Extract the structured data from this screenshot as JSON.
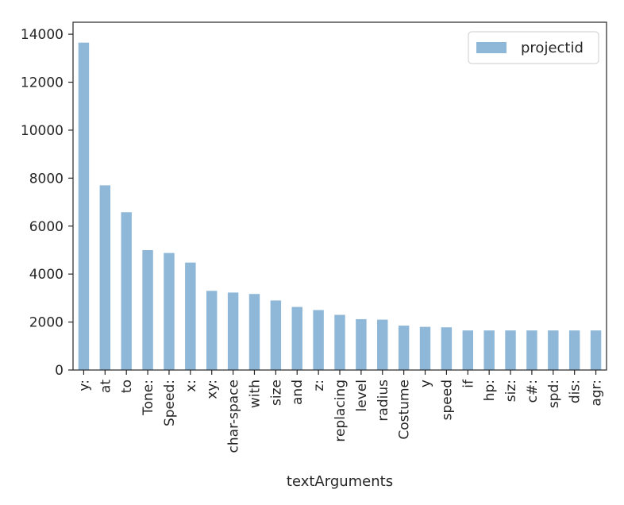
{
  "chart_data": {
    "type": "bar",
    "categories": [
      "y:",
      "at",
      "to",
      "Tone:",
      "Speed:",
      "x:",
      "xy:",
      "char-space",
      "with",
      "size",
      "and",
      "z:",
      "replacing",
      "level",
      "radius",
      "Costume",
      "y",
      "speed",
      "if",
      "hp:",
      "siz:",
      "c#:",
      "spd:",
      "dis:",
      "agr:"
    ],
    "series": [
      {
        "name": "projectid",
        "color": "#8fb8d8",
        "values": [
          13650,
          7700,
          6580,
          5000,
          4880,
          4480,
          3300,
          3230,
          3170,
          2900,
          2630,
          2500,
          2300,
          2120,
          2100,
          1850,
          1800,
          1780,
          1650,
          1650,
          1650,
          1650,
          1650,
          1650,
          1650
        ]
      }
    ],
    "title": "",
    "xlabel": "textArguments",
    "ylabel": "",
    "ylim": [
      0,
      14500
    ],
    "yticks": [
      0,
      2000,
      4000,
      6000,
      8000,
      10000,
      12000,
      14000
    ],
    "grid": false,
    "legend_position": "top-right"
  }
}
